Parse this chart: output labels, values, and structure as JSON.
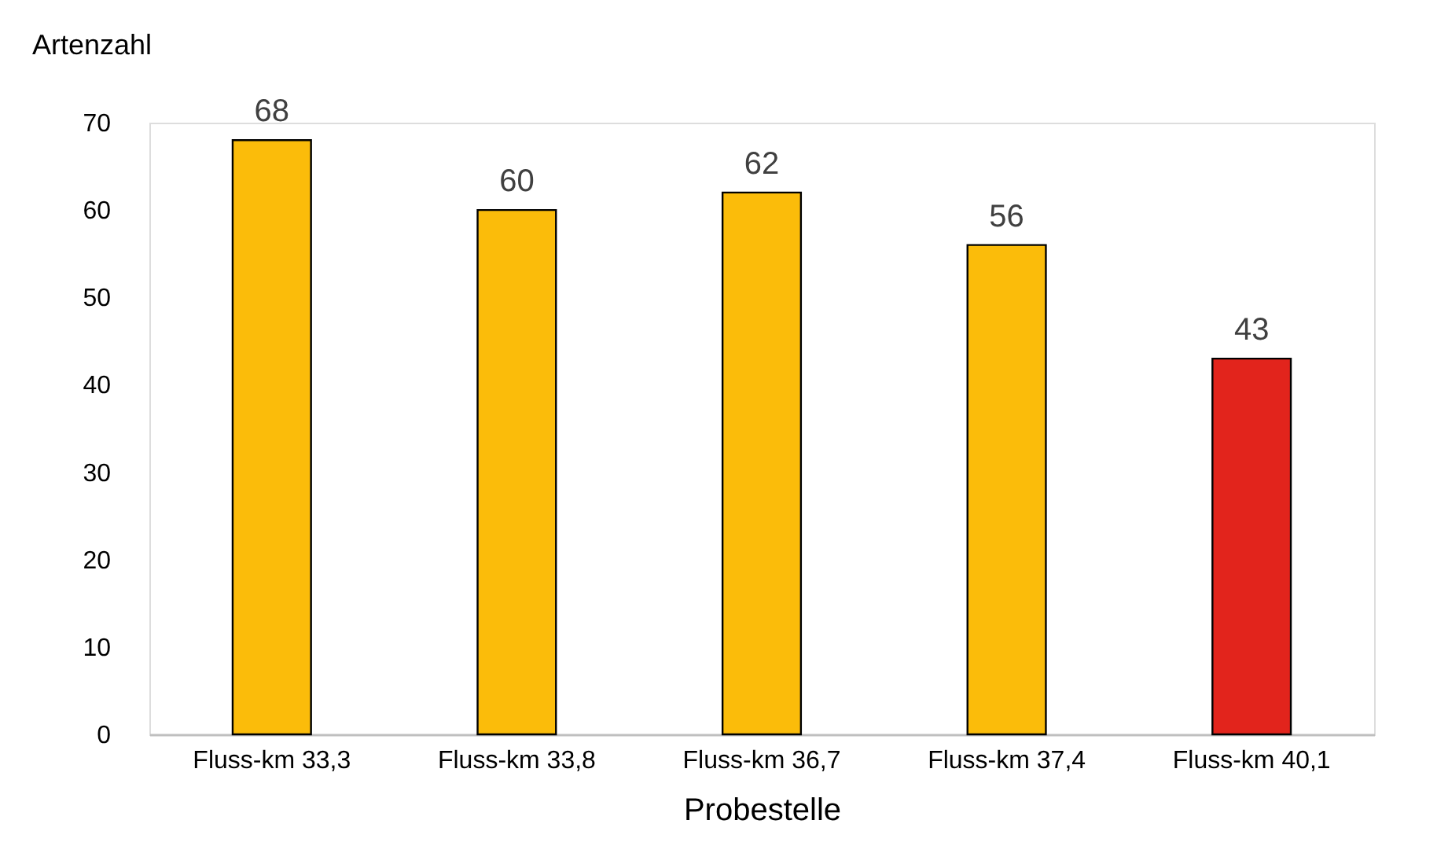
{
  "chart_data": {
    "type": "bar",
    "ylabel": "Artenzahl",
    "xlabel": "Probestelle",
    "categories": [
      "Fluss-km 33,3",
      "Fluss-km 33,8",
      "Fluss-km 36,7",
      "Fluss-km 37,4",
      "Fluss-km 40,1"
    ],
    "values": [
      68,
      60,
      62,
      56,
      43
    ],
    "colors": [
      "#fbbc0a",
      "#fbbc0a",
      "#fbbc0a",
      "#fbbc0a",
      "#e2241c"
    ],
    "ylim": [
      0,
      70
    ],
    "yticks": [
      0,
      10,
      20,
      30,
      40,
      50,
      60,
      70
    ],
    "data_labels": true,
    "grid": false
  }
}
